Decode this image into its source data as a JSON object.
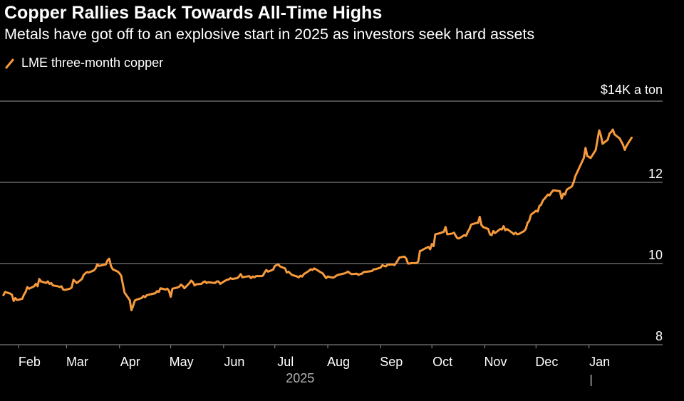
{
  "colors": {
    "background": "#000000",
    "line": "#f79a3c",
    "grid": "#7a7a7a",
    "text": "#ffffff",
    "muted": "#b3b3b3"
  },
  "chart_data": {
    "type": "line",
    "title": "Copper Rallies Back Towards All-Time Highs",
    "subtitle": "Metals have got off to an explosive start in 2025 as investors seek hard assets",
    "legend": [
      "LME three-month copper"
    ],
    "legend_placement": "top-left",
    "unit_label": "$14K a ton",
    "ylim": [
      8000,
      14000
    ],
    "yticks": [
      {
        "value": 8000,
        "label": "8"
      },
      {
        "value": 10000,
        "label": "10"
      },
      {
        "value": 12000,
        "label": "12"
      },
      {
        "value": 14000,
        "label": ""
      }
    ],
    "grid": true,
    "x_month_ticks": [
      {
        "date": "2025-02-01",
        "label": "Feb"
      },
      {
        "date": "2025-03-01",
        "label": "Mar"
      },
      {
        "date": "2025-04-01",
        "label": "Apr"
      },
      {
        "date": "2025-05-01",
        "label": "May"
      },
      {
        "date": "2025-06-01",
        "label": "Jun"
      },
      {
        "date": "2025-07-01",
        "label": "Jul"
      },
      {
        "date": "2025-08-01",
        "label": "Aug"
      },
      {
        "date": "2025-09-01",
        "label": "Sep"
      },
      {
        "date": "2025-10-01",
        "label": "Oct"
      },
      {
        "date": "2025-11-01",
        "label": "Nov"
      },
      {
        "date": "2025-12-01",
        "label": "Dec"
      },
      {
        "date": "2026-01-01",
        "label": "Jan"
      }
    ],
    "year_label": "2025",
    "year_divider_date": "2026-01-01",
    "xlim": [
      "2025-01-21",
      "2026-02-19"
    ],
    "series": [
      {
        "name": "LME three-month copper",
        "points": [
          [
            "2025-01-23",
            9220
          ],
          [
            "2025-01-24",
            9300
          ],
          [
            "2025-01-27",
            9260
          ],
          [
            "2025-01-28",
            9230
          ],
          [
            "2025-01-29",
            9080
          ],
          [
            "2025-01-30",
            9150
          ],
          [
            "2025-01-31",
            9100
          ],
          [
            "2025-02-03",
            9130
          ],
          [
            "2025-02-04",
            9230
          ],
          [
            "2025-02-05",
            9300
          ],
          [
            "2025-02-06",
            9420
          ],
          [
            "2025-02-07",
            9380
          ],
          [
            "2025-02-10",
            9440
          ],
          [
            "2025-02-11",
            9500
          ],
          [
            "2025-02-12",
            9440
          ],
          [
            "2025-02-13",
            9620
          ],
          [
            "2025-02-14",
            9560
          ],
          [
            "2025-02-17",
            9520
          ],
          [
            "2025-02-18",
            9560
          ],
          [
            "2025-02-19",
            9500
          ],
          [
            "2025-02-20",
            9520
          ],
          [
            "2025-02-21",
            9460
          ],
          [
            "2025-02-24",
            9440
          ],
          [
            "2025-02-25",
            9420
          ],
          [
            "2025-02-26",
            9440
          ],
          [
            "2025-02-27",
            9360
          ],
          [
            "2025-02-28",
            9350
          ],
          [
            "2025-03-03",
            9380
          ],
          [
            "2025-03-04",
            9410
          ],
          [
            "2025-03-05",
            9600
          ],
          [
            "2025-03-06",
            9560
          ],
          [
            "2025-03-07",
            9520
          ],
          [
            "2025-03-10",
            9620
          ],
          [
            "2025-03-11",
            9720
          ],
          [
            "2025-03-12",
            9760
          ],
          [
            "2025-03-13",
            9790
          ],
          [
            "2025-03-14",
            9780
          ],
          [
            "2025-03-17",
            9830
          ],
          [
            "2025-03-18",
            9880
          ],
          [
            "2025-03-19",
            9980
          ],
          [
            "2025-03-20",
            9940
          ],
          [
            "2025-03-21",
            9950
          ],
          [
            "2025-03-24",
            9980
          ],
          [
            "2025-03-25",
            10080
          ],
          [
            "2025-03-26",
            10120
          ],
          [
            "2025-03-27",
            9940
          ],
          [
            "2025-03-28",
            9860
          ],
          [
            "2025-03-31",
            9800
          ],
          [
            "2025-04-01",
            9760
          ],
          [
            "2025-04-02",
            9700
          ],
          [
            "2025-04-03",
            9480
          ],
          [
            "2025-04-04",
            9280
          ],
          [
            "2025-04-07",
            9100
          ],
          [
            "2025-04-08",
            8850
          ],
          [
            "2025-04-09",
            8960
          ],
          [
            "2025-04-10",
            9090
          ],
          [
            "2025-04-11",
            9110
          ],
          [
            "2025-04-14",
            9150
          ],
          [
            "2025-04-15",
            9200
          ],
          [
            "2025-04-16",
            9170
          ],
          [
            "2025-04-17",
            9220
          ],
          [
            "2025-04-22",
            9270
          ],
          [
            "2025-04-23",
            9320
          ],
          [
            "2025-04-24",
            9300
          ],
          [
            "2025-04-25",
            9390
          ],
          [
            "2025-04-28",
            9360
          ],
          [
            "2025-04-29",
            9380
          ],
          [
            "2025-04-30",
            9330
          ],
          [
            "2025-05-01",
            9180
          ],
          [
            "2025-05-02",
            9380
          ],
          [
            "2025-05-05",
            9410
          ],
          [
            "2025-05-06",
            9430
          ],
          [
            "2025-05-07",
            9480
          ],
          [
            "2025-05-08",
            9450
          ],
          [
            "2025-05-09",
            9390
          ],
          [
            "2025-05-12",
            9520
          ],
          [
            "2025-05-13",
            9580
          ],
          [
            "2025-05-14",
            9540
          ],
          [
            "2025-05-15",
            9460
          ],
          [
            "2025-05-16",
            9490
          ],
          [
            "2025-05-19",
            9500
          ],
          [
            "2025-05-20",
            9540
          ],
          [
            "2025-05-21",
            9560
          ],
          [
            "2025-05-22",
            9520
          ],
          [
            "2025-05-23",
            9540
          ],
          [
            "2025-05-27",
            9520
          ],
          [
            "2025-05-28",
            9560
          ],
          [
            "2025-05-29",
            9560
          ],
          [
            "2025-05-30",
            9500
          ],
          [
            "2025-06-02",
            9580
          ],
          [
            "2025-06-03",
            9600
          ],
          [
            "2025-06-04",
            9610
          ],
          [
            "2025-06-05",
            9640
          ],
          [
            "2025-06-06",
            9620
          ],
          [
            "2025-06-09",
            9640
          ],
          [
            "2025-06-10",
            9680
          ],
          [
            "2025-06-11",
            9740
          ],
          [
            "2025-06-12",
            9660
          ],
          [
            "2025-06-13",
            9670
          ],
          [
            "2025-06-16",
            9690
          ],
          [
            "2025-06-17",
            9640
          ],
          [
            "2025-06-18",
            9680
          ],
          [
            "2025-06-19",
            9660
          ],
          [
            "2025-06-20",
            9690
          ],
          [
            "2025-06-23",
            9690
          ],
          [
            "2025-06-24",
            9700
          ],
          [
            "2025-06-25",
            9780
          ],
          [
            "2025-06-26",
            9840
          ],
          [
            "2025-06-27",
            9800
          ],
          [
            "2025-06-30",
            9850
          ],
          [
            "2025-07-01",
            9940
          ],
          [
            "2025-07-02",
            9960
          ],
          [
            "2025-07-03",
            9980
          ],
          [
            "2025-07-04",
            9930
          ],
          [
            "2025-07-07",
            9880
          ],
          [
            "2025-07-08",
            9780
          ],
          [
            "2025-07-09",
            9800
          ],
          [
            "2025-07-10",
            9760
          ],
          [
            "2025-07-11",
            9720
          ],
          [
            "2025-07-14",
            9680
          ],
          [
            "2025-07-15",
            9660
          ],
          [
            "2025-07-16",
            9700
          ],
          [
            "2025-07-17",
            9680
          ],
          [
            "2025-07-18",
            9740
          ],
          [
            "2025-07-21",
            9820
          ],
          [
            "2025-07-22",
            9860
          ],
          [
            "2025-07-23",
            9840
          ],
          [
            "2025-07-24",
            9880
          ],
          [
            "2025-07-25",
            9860
          ],
          [
            "2025-07-28",
            9780
          ],
          [
            "2025-07-29",
            9760
          ],
          [
            "2025-07-30",
            9700
          ],
          [
            "2025-07-31",
            9640
          ],
          [
            "2025-08-01",
            9680
          ],
          [
            "2025-08-04",
            9650
          ],
          [
            "2025-08-05",
            9670
          ],
          [
            "2025-08-06",
            9700
          ],
          [
            "2025-08-07",
            9720
          ],
          [
            "2025-08-08",
            9730
          ],
          [
            "2025-08-11",
            9760
          ],
          [
            "2025-08-12",
            9780
          ],
          [
            "2025-08-13",
            9800
          ],
          [
            "2025-08-14",
            9760
          ],
          [
            "2025-08-15",
            9740
          ],
          [
            "2025-08-18",
            9750
          ],
          [
            "2025-08-19",
            9720
          ],
          [
            "2025-08-20",
            9740
          ],
          [
            "2025-08-21",
            9750
          ],
          [
            "2025-08-22",
            9790
          ],
          [
            "2025-08-26",
            9810
          ],
          [
            "2025-08-27",
            9820
          ],
          [
            "2025-08-28",
            9860
          ],
          [
            "2025-08-29",
            9860
          ],
          [
            "2025-09-01",
            9900
          ],
          [
            "2025-09-02",
            9960
          ],
          [
            "2025-09-03",
            9940
          ],
          [
            "2025-09-04",
            9930
          ],
          [
            "2025-09-05",
            9970
          ],
          [
            "2025-09-08",
            9980
          ],
          [
            "2025-09-09",
            9960
          ],
          [
            "2025-09-10",
            10010
          ],
          [
            "2025-09-11",
            10080
          ],
          [
            "2025-09-12",
            10150
          ],
          [
            "2025-09-15",
            10170
          ],
          [
            "2025-09-16",
            10120
          ],
          [
            "2025-09-17",
            10000
          ],
          [
            "2025-09-18",
            10000
          ],
          [
            "2025-09-19",
            10010
          ],
          [
            "2025-09-22",
            10010
          ],
          [
            "2025-09-23",
            10050
          ],
          [
            "2025-09-24",
            10310
          ],
          [
            "2025-09-25",
            10320
          ],
          [
            "2025-09-26",
            10350
          ],
          [
            "2025-09-29",
            10410
          ],
          [
            "2025-09-30",
            10350
          ],
          [
            "2025-10-01",
            10480
          ],
          [
            "2025-10-02",
            10430
          ],
          [
            "2025-10-03",
            10720
          ],
          [
            "2025-10-06",
            10750
          ],
          [
            "2025-10-07",
            10770
          ],
          [
            "2025-10-08",
            10780
          ],
          [
            "2025-10-09",
            10900
          ],
          [
            "2025-10-10",
            10720
          ],
          [
            "2025-10-13",
            10740
          ],
          [
            "2025-10-14",
            10760
          ],
          [
            "2025-10-15",
            10680
          ],
          [
            "2025-10-16",
            10620
          ],
          [
            "2025-10-17",
            10620
          ],
          [
            "2025-10-20",
            10700
          ],
          [
            "2025-10-21",
            10680
          ],
          [
            "2025-10-22",
            10780
          ],
          [
            "2025-10-23",
            10850
          ],
          [
            "2025-10-24",
            10960
          ],
          [
            "2025-10-27",
            11000
          ],
          [
            "2025-10-28",
            11000
          ],
          [
            "2025-10-29",
            11150
          ],
          [
            "2025-10-30",
            10950
          ],
          [
            "2025-10-31",
            10900
          ],
          [
            "2025-11-03",
            10850
          ],
          [
            "2025-11-04",
            10720
          ],
          [
            "2025-11-05",
            10700
          ],
          [
            "2025-11-06",
            10800
          ],
          [
            "2025-11-07",
            10750
          ],
          [
            "2025-11-10",
            10850
          ],
          [
            "2025-11-11",
            10840
          ],
          [
            "2025-11-12",
            10920
          ],
          [
            "2025-11-13",
            10820
          ],
          [
            "2025-11-14",
            10850
          ],
          [
            "2025-11-17",
            10760
          ],
          [
            "2025-11-18",
            10720
          ],
          [
            "2025-11-19",
            10760
          ],
          [
            "2025-11-20",
            10720
          ],
          [
            "2025-11-21",
            10730
          ],
          [
            "2025-11-24",
            10800
          ],
          [
            "2025-11-25",
            10850
          ],
          [
            "2025-11-26",
            11000
          ],
          [
            "2025-11-27",
            11050
          ],
          [
            "2025-11-28",
            11200
          ],
          [
            "2025-12-01",
            11300
          ],
          [
            "2025-12-02",
            11280
          ],
          [
            "2025-12-03",
            11420
          ],
          [
            "2025-12-04",
            11450
          ],
          [
            "2025-12-05",
            11550
          ],
          [
            "2025-12-08",
            11700
          ],
          [
            "2025-12-09",
            11680
          ],
          [
            "2025-12-10",
            11750
          ],
          [
            "2025-12-11",
            11800
          ],
          [
            "2025-12-12",
            11800
          ],
          [
            "2025-12-15",
            11780
          ],
          [
            "2025-12-16",
            11600
          ],
          [
            "2025-12-17",
            11720
          ],
          [
            "2025-12-18",
            11700
          ],
          [
            "2025-12-19",
            11820
          ],
          [
            "2025-12-22",
            11900
          ],
          [
            "2025-12-23",
            12000
          ],
          [
            "2025-12-24",
            12150
          ],
          [
            "2025-12-29",
            12600
          ],
          [
            "2025-12-30",
            12850
          ],
          [
            "2025-12-31",
            12650
          ],
          [
            "2026-01-02",
            12600
          ],
          [
            "2026-01-05",
            12800
          ],
          [
            "2026-01-06",
            13050
          ],
          [
            "2026-01-07",
            13280
          ],
          [
            "2026-01-08",
            13150
          ],
          [
            "2026-01-09",
            12950
          ],
          [
            "2026-01-12",
            13050
          ],
          [
            "2026-01-13",
            13200
          ],
          [
            "2026-01-14",
            13240
          ],
          [
            "2026-01-15",
            13300
          ],
          [
            "2026-01-16",
            13180
          ],
          [
            "2026-01-19",
            13080
          ],
          [
            "2026-01-20",
            13000
          ],
          [
            "2026-01-21",
            12920
          ],
          [
            "2026-01-22",
            12800
          ],
          [
            "2026-01-23",
            12900
          ],
          [
            "2026-01-26",
            13100
          ]
        ]
      }
    ]
  }
}
